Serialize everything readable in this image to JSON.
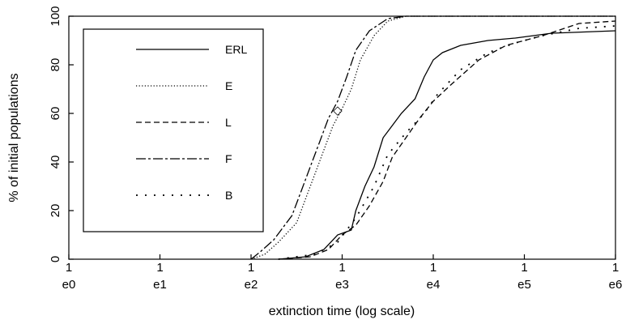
{
  "chart_data": {
    "type": "line",
    "title": "",
    "xlabel": "extinction time (log scale)",
    "ylabel": "% of initial populations",
    "x_scale": "log",
    "xlim": [
      0,
      6
    ],
    "ylim": [
      0,
      100
    ],
    "x_ticks": [
      {
        "top": "1",
        "bottom": "e0"
      },
      {
        "top": "1",
        "bottom": "e1"
      },
      {
        "top": "1",
        "bottom": "e2"
      },
      {
        "top": "1",
        "bottom": "e3"
      },
      {
        "top": "1",
        "bottom": "e4"
      },
      {
        "top": "1",
        "bottom": "e5"
      },
      {
        "top": "1",
        "bottom": "e6"
      }
    ],
    "y_ticks": [
      "0",
      "20",
      "40",
      "60",
      "80",
      "100"
    ],
    "grid": false,
    "legend_position": "top-left",
    "series": [
      {
        "name": "ERL",
        "style": "solid",
        "points": [
          [
            2.3,
            0
          ],
          [
            2.6,
            1
          ],
          [
            2.8,
            4
          ],
          [
            2.95,
            10
          ],
          [
            3.1,
            12
          ],
          [
            3.15,
            20
          ],
          [
            3.25,
            30
          ],
          [
            3.35,
            38
          ],
          [
            3.45,
            50
          ],
          [
            3.55,
            55
          ],
          [
            3.65,
            60
          ],
          [
            3.8,
            66
          ],
          [
            3.9,
            75
          ],
          [
            4.0,
            82
          ],
          [
            4.1,
            85
          ],
          [
            4.3,
            88
          ],
          [
            4.6,
            90
          ],
          [
            4.9,
            91
          ],
          [
            5.3,
            93
          ],
          [
            6.0,
            94
          ]
        ]
      },
      {
        "name": "E",
        "style": "dotted",
        "points": [
          [
            2.0,
            0
          ],
          [
            2.15,
            2
          ],
          [
            2.3,
            7
          ],
          [
            2.5,
            15
          ],
          [
            2.6,
            25
          ],
          [
            2.7,
            35
          ],
          [
            2.8,
            45
          ],
          [
            2.9,
            55
          ],
          [
            3.0,
            62
          ],
          [
            3.1,
            70
          ],
          [
            3.2,
            82
          ],
          [
            3.35,
            92
          ],
          [
            3.5,
            98
          ],
          [
            3.7,
            100
          ],
          [
            6.0,
            100
          ]
        ]
      },
      {
        "name": "L",
        "style": "dashed",
        "points": [
          [
            2.3,
            0
          ],
          [
            2.65,
            1
          ],
          [
            2.85,
            4
          ],
          [
            3.0,
            10
          ],
          [
            3.15,
            14
          ],
          [
            3.3,
            22
          ],
          [
            3.45,
            32
          ],
          [
            3.55,
            42
          ],
          [
            3.7,
            50
          ],
          [
            3.85,
            58
          ],
          [
            4.0,
            65
          ],
          [
            4.2,
            72
          ],
          [
            4.5,
            82
          ],
          [
            4.8,
            88
          ],
          [
            5.2,
            92
          ],
          [
            5.6,
            97
          ],
          [
            6.0,
            98
          ]
        ]
      },
      {
        "name": "F",
        "style": "dashdot",
        "points": [
          [
            2.0,
            0
          ],
          [
            2.1,
            3
          ],
          [
            2.25,
            8
          ],
          [
            2.45,
            18
          ],
          [
            2.55,
            28
          ],
          [
            2.65,
            38
          ],
          [
            2.75,
            48
          ],
          [
            2.85,
            58
          ],
          [
            2.95,
            65
          ],
          [
            3.05,
            75
          ],
          [
            3.15,
            86
          ],
          [
            3.3,
            94
          ],
          [
            3.5,
            99
          ],
          [
            3.7,
            100
          ],
          [
            6.0,
            100
          ]
        ]
      },
      {
        "name": "B",
        "style": "sparse-dashed",
        "points": [
          [
            2.3,
            0
          ],
          [
            2.7,
            2
          ],
          [
            2.95,
            7
          ],
          [
            3.15,
            17
          ],
          [
            3.35,
            30
          ],
          [
            3.5,
            43
          ],
          [
            3.7,
            52
          ],
          [
            3.9,
            60
          ],
          [
            4.05,
            68
          ],
          [
            4.3,
            78
          ],
          [
            4.6,
            85
          ],
          [
            4.9,
            89
          ],
          [
            5.2,
            92
          ],
          [
            5.6,
            95
          ],
          [
            6.0,
            96
          ]
        ]
      }
    ],
    "annotations": [
      {
        "text": "◇",
        "x": 2.95,
        "y": 61
      }
    ]
  }
}
